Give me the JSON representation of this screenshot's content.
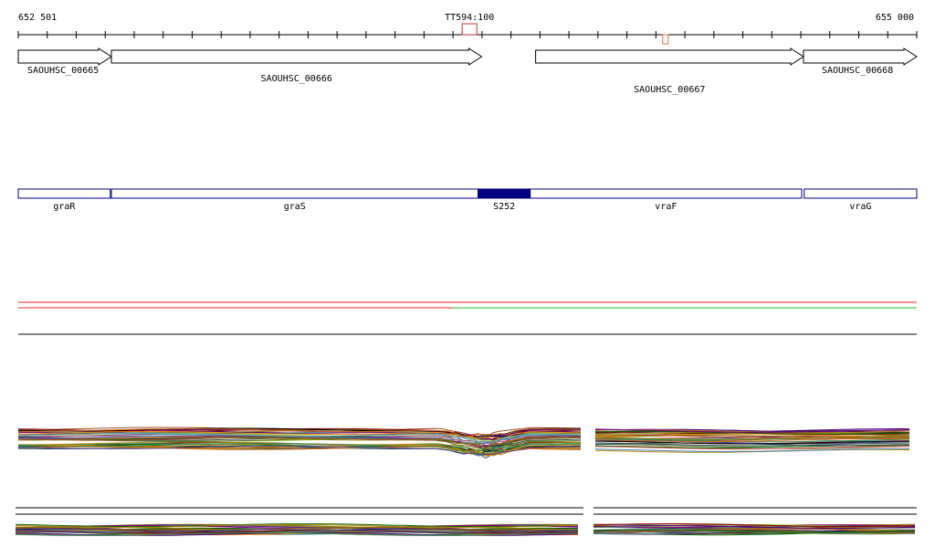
{
  "coordinates": {
    "start_label": "652 501",
    "end_label": "655 000",
    "start": 652501,
    "end": 655000
  },
  "marker": {
    "label": "TT594:100",
    "position": 653756,
    "color": "#cc3333"
  },
  "small_marker": {
    "position": 654301,
    "color": "#e07050"
  },
  "loci": [
    {
      "name": "SAOUHSC_00665",
      "start": 652501,
      "end": 652760,
      "strand": "+"
    },
    {
      "name": "SAOUHSC_00666",
      "start": 652760,
      "end": 653790,
      "strand": "+"
    },
    {
      "name": "SAOUHSC_00667",
      "start": 653940,
      "end": 654685,
      "strand": "+"
    },
    {
      "name": "SAOUHSC_00668",
      "start": 654685,
      "end": 655000,
      "strand": "+"
    }
  ],
  "genes": [
    {
      "name": "graR",
      "start": 652501,
      "end": 652757,
      "filled": false
    },
    {
      "name": "graS",
      "start": 652760,
      "end": 653780,
      "filled": false
    },
    {
      "name": "S252",
      "start": 653780,
      "end": 653925,
      "filled": true
    },
    {
      "name": "vraF",
      "start": 653925,
      "end": 654680,
      "filled": false
    },
    {
      "name": "vraG",
      "start": 654687,
      "end": 655000,
      "filled": false
    }
  ],
  "colors": {
    "axis": "#000000",
    "gene_outline": "#000080",
    "gene_fill": "#000080",
    "strand_red": "#e02020",
    "strand_green": "#20c020"
  },
  "strand_switch_position": 653710,
  "panel_gap": {
    "start": 654075,
    "end": 654095
  }
}
